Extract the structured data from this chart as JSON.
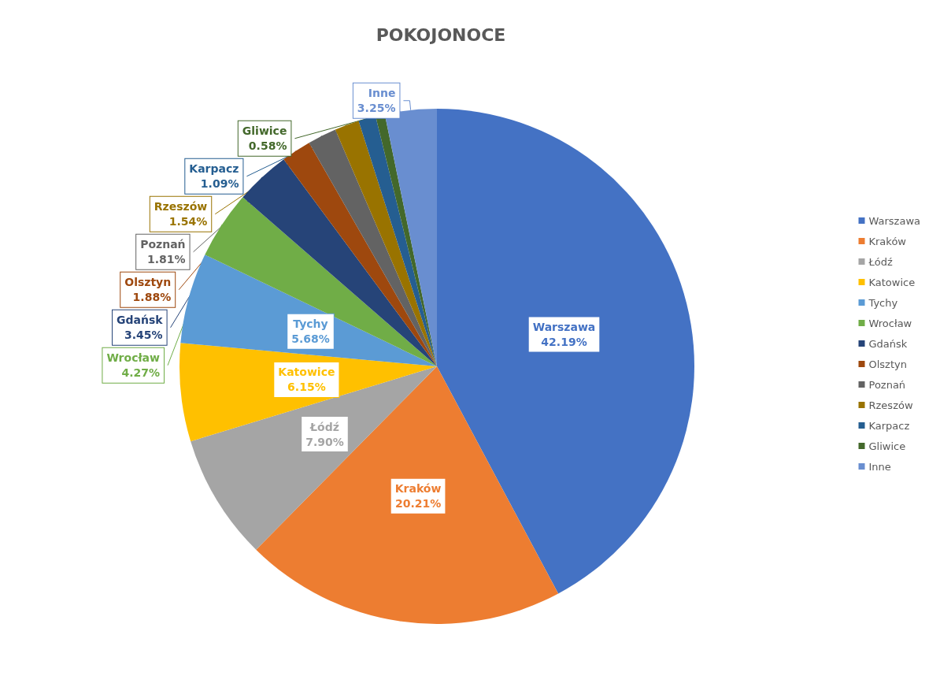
{
  "chart_data": {
    "type": "pie",
    "title": "POKOJONOCE",
    "categories": [
      "Warszawa",
      "Kraków",
      "Łódź",
      "Katowice",
      "Tychy",
      "Wrocław",
      "Gdańsk",
      "Olsztyn",
      "Poznań",
      "Rzeszów",
      "Karpacz",
      "Gliwice",
      "Inne"
    ],
    "values": [
      42.19,
      20.21,
      7.9,
      6.15,
      5.68,
      4.27,
      3.45,
      1.88,
      1.81,
      1.54,
      1.09,
      0.58,
      3.25
    ],
    "value_labels": [
      "42.19%",
      "20.21%",
      "7.90%",
      "6.15%",
      "5.68%",
      "4.27%",
      "3.45%",
      "1.88%",
      "1.81%",
      "1.54%",
      "1.09%",
      "0.58%",
      "3.25%"
    ],
    "colors": [
      "#4472c4",
      "#ed7d31",
      "#a5a5a5",
      "#ffc000",
      "#5b9bd5",
      "#70ad47",
      "#264478",
      "#9e480e",
      "#636363",
      "#997300",
      "#255e91",
      "#43682b",
      "#698ed0"
    ],
    "legend": "right"
  }
}
